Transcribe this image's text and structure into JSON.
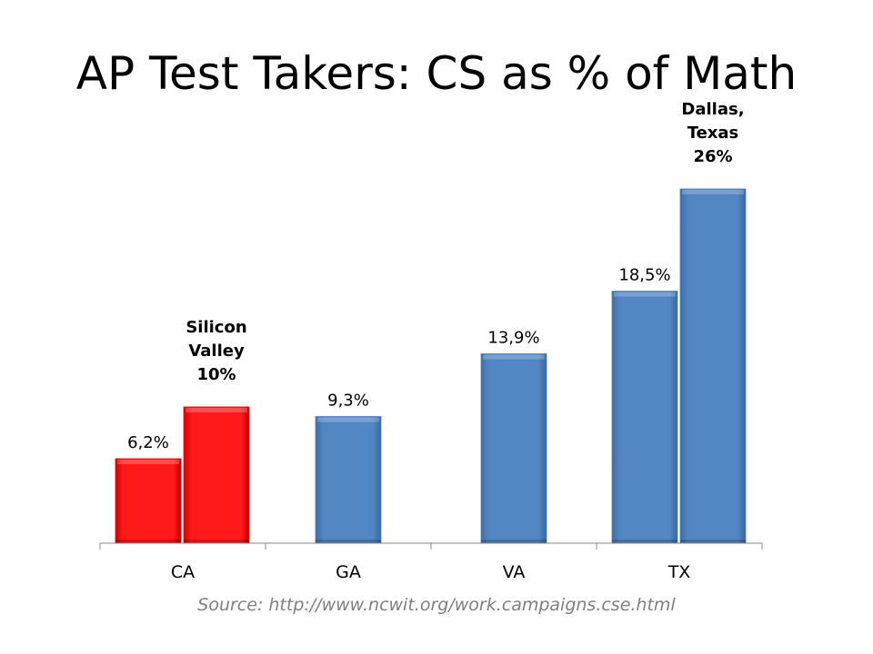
{
  "title": "AP Test Takers: CS as % of Math",
  "source": "Source: http://www.ncwit.org/work.campaigns.cse.html",
  "colors": {
    "red": "#ff0000",
    "blue": "#4f81bd",
    "axis": "#898989"
  },
  "chart_data": {
    "type": "bar",
    "categories": [
      "CA",
      "GA",
      "VA",
      "TX"
    ],
    "ylim": [
      0,
      30
    ],
    "bars": [
      {
        "category": "CA",
        "value": 6.2,
        "label": "6,2%",
        "color": "red",
        "slot": 0
      },
      {
        "category": "CA",
        "value": 10,
        "label_lines": [
          "Silicon",
          "Valley",
          "10%"
        ],
        "color": "red",
        "slot": 1
      },
      {
        "category": "GA",
        "value": 9.3,
        "label": "9,3%",
        "color": "blue",
        "slot": 0
      },
      {
        "category": "VA",
        "value": 13.9,
        "label": "13,9%",
        "color": "blue",
        "slot": 0
      },
      {
        "category": "TX",
        "value": 18.5,
        "label": "18,5%",
        "color": "blue",
        "slot": 0
      },
      {
        "category": "TX",
        "value": 26,
        "label_lines": [
          "Dallas,",
          "Texas",
          "26%"
        ],
        "color": "blue",
        "slot": 1
      }
    ]
  }
}
